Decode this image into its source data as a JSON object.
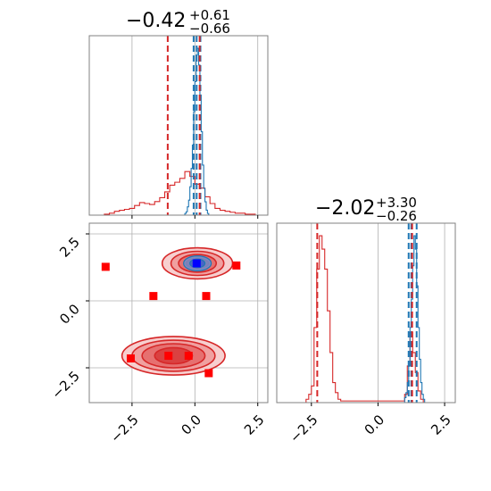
{
  "chart_data": {
    "type": "corner",
    "parameters": [
      {
        "title": {
          "main": "−0.42",
          "sup": "+0.61",
          "sub": "−0.66"
        },
        "range": [
          -4.2,
          2.9
        ],
        "ticks": [
          -2.5,
          0.0,
          2.5
        ],
        "tick_labels": [
          "−2.5",
          "0.0",
          "2.5"
        ],
        "red_quantiles": [
          -1.08,
          -0.42,
          0.19
        ],
        "blue_quantiles": [
          -0.05,
          0.07,
          0.22
        ],
        "red_hist": {
          "bins": [
            -3.6,
            -3.4,
            -3.2,
            -3.0,
            -2.8,
            -2.6,
            -2.4,
            -2.2,
            -2.0,
            -1.8,
            -1.6,
            -1.4,
            -1.2,
            -1.0,
            -0.8,
            -0.6,
            -0.4,
            -0.2,
            0.0,
            0.2,
            0.4,
            0.6,
            0.8,
            1.0,
            1.2,
            1.4,
            1.6,
            1.8,
            2.0,
            2.2
          ],
          "values": [
            0.01,
            0.02,
            0.04,
            0.05,
            0.06,
            0.07,
            0.1,
            0.13,
            0.12,
            0.11,
            0.14,
            0.18,
            0.24,
            0.31,
            0.34,
            0.38,
            0.45,
            0.4,
            0.32,
            0.28,
            0.19,
            0.12,
            0.07,
            0.05,
            0.04,
            0.03,
            0.02,
            0.02,
            0.01,
            0.01
          ]
        },
        "blue_hist": {
          "bins": [
            -0.4,
            -0.35,
            -0.3,
            -0.25,
            -0.2,
            -0.15,
            -0.1,
            -0.05,
            0.0,
            0.05,
            0.1,
            0.15,
            0.2,
            0.25,
            0.3,
            0.35,
            0.4,
            0.45,
            0.5
          ],
          "values": [
            0.01,
            0.02,
            0.05,
            0.09,
            0.17,
            0.28,
            0.42,
            0.62,
            0.8,
            0.96,
            1.0,
            0.9,
            0.72,
            0.5,
            0.3,
            0.16,
            0.08,
            0.03,
            0.01
          ]
        }
      },
      {
        "title": {
          "main": "−2.02",
          "sup": "+3.30",
          "sub": "−0.26"
        },
        "range": [
          -3.8,
          2.9
        ],
        "ticks": [
          -2.5,
          0.0,
          2.5
        ],
        "tick_labels": [
          "−2.5",
          "0.0",
          "2.5"
        ],
        "red_quantiles": [
          -2.28,
          -2.02,
          1.28
        ],
        "blue_quantiles": [
          1.15,
          1.25,
          1.45
        ],
        "red_hist": {
          "bins": [
            -2.7,
            -2.6,
            -2.5,
            -2.4,
            -2.3,
            -2.2,
            -2.1,
            -2.0,
            -1.9,
            -1.8,
            -1.7,
            -1.6,
            -1.5,
            -1.4,
            1.0,
            1.1,
            1.2,
            1.3,
            1.4,
            1.5,
            1.6
          ],
          "values": [
            0.02,
            0.05,
            0.1,
            0.45,
            0.8,
            1.0,
            0.92,
            0.8,
            0.55,
            0.3,
            0.12,
            0.06,
            0.02,
            0.01,
            0.05,
            0.22,
            0.42,
            0.3,
            0.18,
            0.07,
            0.02
          ]
        },
        "blue_hist": {
          "bins": [
            1.0,
            1.05,
            1.1,
            1.15,
            1.2,
            1.25,
            1.3,
            1.35,
            1.4,
            1.45,
            1.5,
            1.55,
            1.6,
            1.65,
            1.7
          ],
          "values": [
            0.03,
            0.06,
            0.12,
            0.22,
            0.45,
            0.62,
            0.82,
            1.0,
            0.92,
            0.7,
            0.45,
            0.26,
            0.12,
            0.05,
            0.02
          ]
        }
      }
    ],
    "scatter_2d": {
      "red_markers": [
        {
          "x": -3.55,
          "y": 1.27
        },
        {
          "x": 1.65,
          "y": 1.32
        },
        {
          "x": -1.65,
          "y": 0.18
        },
        {
          "x": 0.45,
          "y": 0.18
        },
        {
          "x": -2.55,
          "y": -2.15
        },
        {
          "x": -1.05,
          "y": -2.05
        },
        {
          "x": -0.25,
          "y": -2.05
        },
        {
          "x": 0.55,
          "y": -2.7
        }
      ],
      "blue_marker": {
        "x": 0.07,
        "y": 1.4
      },
      "red_clusters": [
        {
          "cx": 0.1,
          "cy": 1.4,
          "rx": [
            1.4,
            1.05,
            0.75,
            0.45
          ],
          "ry": [
            0.58,
            0.45,
            0.33,
            0.18
          ]
        },
        {
          "cx": -0.85,
          "cy": -2.05,
          "rx": [
            2.05,
            1.65,
            1.25,
            0.75
          ],
          "ry": [
            0.72,
            0.58,
            0.45,
            0.3
          ]
        }
      ],
      "blue_contour": {
        "cx": 0.1,
        "cy": 1.4,
        "rx": [
          0.55,
          0.3
        ],
        "ry": [
          0.28,
          0.16
        ]
      },
      "red_color": "#d62728",
      "blue_color": "#1f77b4",
      "marker_color": "#ff0000",
      "marker_blue": "#0000ff"
    },
    "grid": true,
    "colors": {
      "red": "#d62728",
      "blue": "#1f77b4",
      "axis": "#808080",
      "grid": "#b0b0b0"
    }
  }
}
